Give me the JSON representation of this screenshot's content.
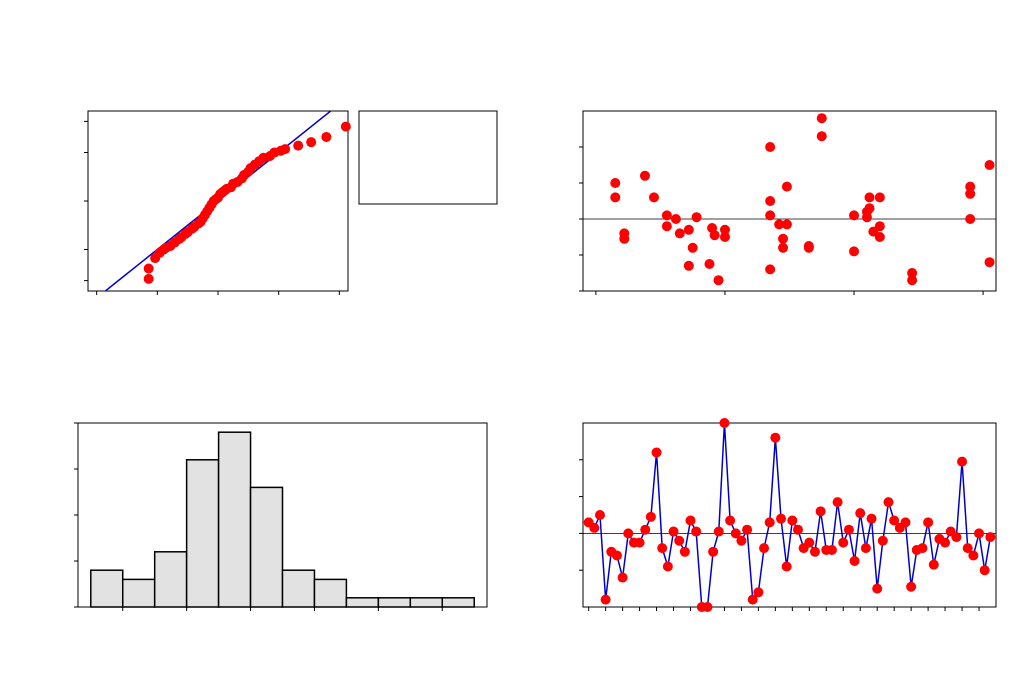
{
  "colors": {
    "points": "#ff0000",
    "line": "#0000cc",
    "bars": "#e2e2e2",
    "frame": "#000000"
  },
  "chart_data": [
    {
      "type": "scatter",
      "subtype": "normal-probability-plot",
      "xlim": [
        -3,
        3
      ],
      "ylim": [
        -2.6,
        2.6
      ],
      "fit_line": {
        "from": [
          -3,
          -3.0
        ],
        "to": [
          3,
          3.0
        ]
      },
      "points": [
        [
          -1.6,
          -2.25
        ],
        [
          -1.6,
          -1.95
        ],
        [
          -1.45,
          -1.65
        ],
        [
          -1.35,
          -1.5
        ],
        [
          -1.25,
          -1.4
        ],
        [
          -1.2,
          -1.35
        ],
        [
          -1.1,
          -1.3
        ],
        [
          -1.0,
          -1.2
        ],
        [
          -0.9,
          -1.1
        ],
        [
          -0.85,
          -1.05
        ],
        [
          -0.75,
          -0.95
        ],
        [
          -0.7,
          -0.9
        ],
        [
          -0.6,
          -0.8
        ],
        [
          -0.55,
          -0.75
        ],
        [
          -0.45,
          -0.65
        ],
        [
          -0.4,
          -0.6
        ],
        [
          -0.35,
          -0.5
        ],
        [
          -0.3,
          -0.4
        ],
        [
          -0.25,
          -0.3
        ],
        [
          -0.2,
          -0.2
        ],
        [
          -0.15,
          -0.1
        ],
        [
          -0.1,
          0.0
        ],
        [
          -0.05,
          0.05
        ],
        [
          0.0,
          0.1
        ],
        [
          0.05,
          0.2
        ],
        [
          0.1,
          0.25
        ],
        [
          0.15,
          0.3
        ],
        [
          0.2,
          0.35
        ],
        [
          0.3,
          0.4
        ],
        [
          0.35,
          0.5
        ],
        [
          0.45,
          0.55
        ],
        [
          0.55,
          0.65
        ],
        [
          0.6,
          0.75
        ],
        [
          0.7,
          0.85
        ],
        [
          0.75,
          0.95
        ],
        [
          0.85,
          1.05
        ],
        [
          0.95,
          1.15
        ],
        [
          1.05,
          1.25
        ],
        [
          1.2,
          1.3
        ],
        [
          1.3,
          1.4
        ],
        [
          1.45,
          1.45
        ],
        [
          1.55,
          1.5
        ],
        [
          1.85,
          1.6
        ],
        [
          2.15,
          1.7
        ],
        [
          2.5,
          1.85
        ],
        [
          2.95,
          2.15
        ]
      ]
    },
    {
      "type": "scatter",
      "subtype": "residuals-vs-fits",
      "xlim": [
        -0.1,
        3.1
      ],
      "ylim": [
        -2.0,
        3.0
      ],
      "reference_line": 0,
      "points": [
        [
          0.15,
          1.0
        ],
        [
          0.15,
          0.6
        ],
        [
          0.22,
          -0.4
        ],
        [
          0.22,
          -0.55
        ],
        [
          0.38,
          1.2
        ],
        [
          0.45,
          0.6
        ],
        [
          0.55,
          0.1
        ],
        [
          0.55,
          -0.2
        ],
        [
          0.62,
          0.0
        ],
        [
          0.65,
          -0.4
        ],
        [
          0.72,
          -1.3
        ],
        [
          0.72,
          -0.3
        ],
        [
          0.75,
          -0.8
        ],
        [
          0.78,
          0.05
        ],
        [
          0.88,
          -1.25
        ],
        [
          0.9,
          -0.25
        ],
        [
          0.92,
          -0.45
        ],
        [
          0.95,
          -1.7
        ],
        [
          1.0,
          -0.3
        ],
        [
          1.0,
          -0.5
        ],
        [
          1.35,
          2.0
        ],
        [
          1.35,
          0.5
        ],
        [
          1.35,
          0.1
        ],
        [
          1.35,
          -1.4
        ],
        [
          1.42,
          -0.15
        ],
        [
          1.45,
          -0.55
        ],
        [
          1.45,
          -0.8
        ],
        [
          1.48,
          0.9
        ],
        [
          1.48,
          -0.15
        ],
        [
          1.65,
          -0.75
        ],
        [
          1.65,
          -0.8
        ],
        [
          1.75,
          2.8
        ],
        [
          1.75,
          2.3
        ],
        [
          2.0,
          0.1
        ],
        [
          2.0,
          -0.9
        ],
        [
          2.1,
          0.2
        ],
        [
          2.1,
          0.05
        ],
        [
          2.12,
          0.6
        ],
        [
          2.12,
          0.3
        ],
        [
          2.15,
          -0.35
        ],
        [
          2.2,
          0.6
        ],
        [
          2.2,
          -0.2
        ],
        [
          2.2,
          -0.5
        ],
        [
          2.45,
          -1.7
        ],
        [
          2.45,
          -1.5
        ],
        [
          2.9,
          0.9
        ],
        [
          2.9,
          0.7
        ],
        [
          2.9,
          0.0
        ],
        [
          3.05,
          1.5
        ],
        [
          3.05,
          -1.2
        ]
      ]
    },
    {
      "type": "bar",
      "subtype": "histogram",
      "bin_edges": [
        -1.5,
        -1.0,
        -0.5,
        0.0,
        0.5,
        1.0,
        1.5,
        2.0,
        2.5,
        3.0,
        3.5,
        4.0,
        4.5
      ],
      "values": [
        4,
        3,
        6,
        16,
        19,
        13,
        4,
        3,
        1,
        1,
        1,
        1
      ],
      "xlim": [
        -1.7,
        4.7
      ],
      "ylim": [
        0,
        20
      ]
    },
    {
      "type": "line",
      "subtype": "residuals-vs-order",
      "ylim": [
        -2.0,
        3.0
      ],
      "reference_line": 0,
      "x_start": 1,
      "values": [
        0.3,
        0.15,
        0.5,
        -1.8,
        -0.5,
        -0.6,
        -1.2,
        0.0,
        -0.25,
        -0.25,
        0.1,
        0.45,
        2.2,
        -0.4,
        -0.9,
        0.05,
        -0.2,
        -0.5,
        0.35,
        0.05,
        -2.0,
        -2.0,
        -0.5,
        0.05,
        3.0,
        0.35,
        0.0,
        -0.2,
        0.1,
        -1.8,
        -1.6,
        -0.4,
        0.3,
        2.6,
        0.4,
        -0.9,
        0.35,
        0.1,
        -0.4,
        -0.25,
        -0.5,
        0.6,
        -0.45,
        -0.45,
        0.85,
        -0.25,
        0.1,
        -0.75,
        0.55,
        -0.4,
        0.4,
        -1.5,
        -0.2,
        0.85,
        0.35,
        0.15,
        0.3,
        -1.45,
        -0.45,
        -0.4,
        0.3,
        -0.85,
        -0.15,
        -0.25,
        0.05,
        -0.1,
        1.95,
        -0.4,
        -0.6,
        0.0,
        -1.0,
        -0.1
      ]
    }
  ]
}
